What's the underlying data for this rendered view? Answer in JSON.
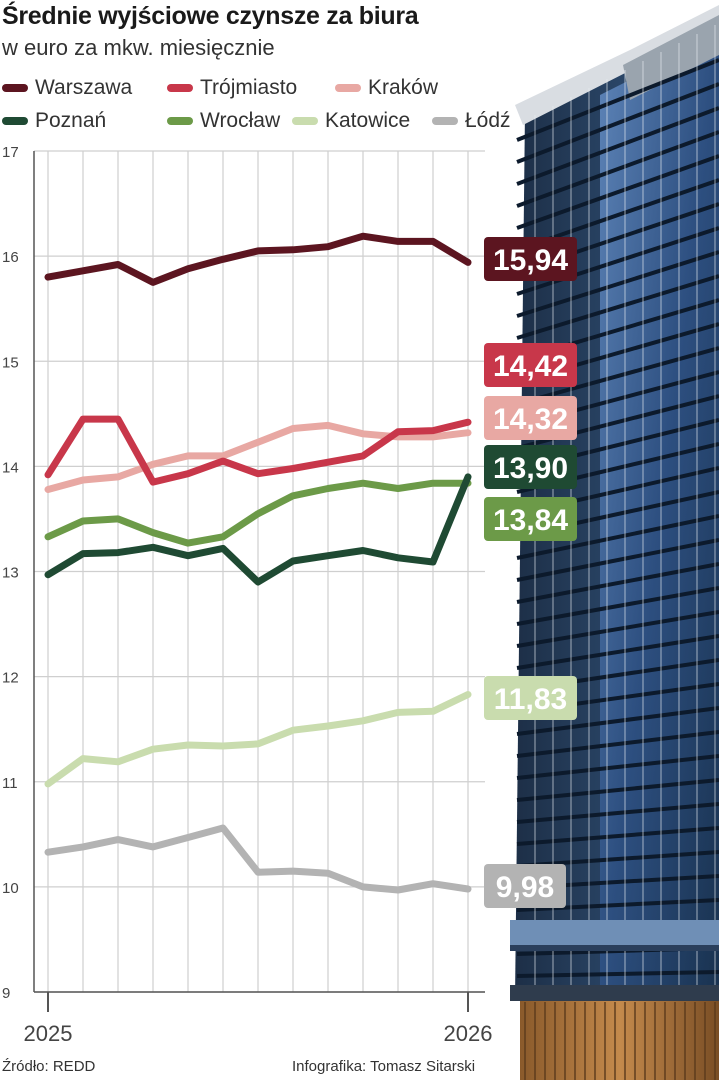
{
  "title": "Średnie wyjściowe czynsze za biura",
  "subtitle": "w euro za mkw. miesięcznie",
  "footer": {
    "source": "Źródło: REDD",
    "credit": "Infografika: Tomasz Sitarski"
  },
  "chart_data": {
    "type": "line",
    "title": "Średnie wyjściowe czynsze za biura",
    "subtitle": "w euro za mkw. miesięcznie",
    "xlabel": "",
    "ylabel": "",
    "ylim": [
      9,
      17
    ],
    "yticks": [
      9,
      10,
      11,
      12,
      13,
      14,
      15,
      16,
      17
    ],
    "x_tick_labels": [
      "2025",
      "2026"
    ],
    "grid": true,
    "legend_position": "top",
    "n_points": 13,
    "series": [
      {
        "name": "Warszawa",
        "color": "#5c1520",
        "end_label": "15,94",
        "values": [
          15.8,
          15.86,
          15.92,
          15.75,
          15.88,
          15.97,
          16.05,
          16.06,
          16.09,
          16.19,
          16.14,
          16.14,
          15.94
        ]
      },
      {
        "name": "Trójmiasto",
        "color": "#c8374a",
        "end_label": "14,42",
        "values": [
          13.92,
          14.45,
          14.45,
          13.85,
          13.93,
          14.05,
          13.93,
          13.98,
          14.04,
          14.1,
          14.33,
          14.34,
          14.42
        ]
      },
      {
        "name": "Kraków",
        "color": "#e8a8a3",
        "end_label": "14,32",
        "values": [
          13.78,
          13.87,
          13.9,
          14.02,
          14.1,
          14.1,
          14.23,
          14.36,
          14.39,
          14.31,
          14.28,
          14.28,
          14.32
        ]
      },
      {
        "name": "Poznań",
        "color": "#1f4a33",
        "end_label": "13,90",
        "values": [
          12.97,
          13.17,
          13.18,
          13.23,
          13.15,
          13.22,
          12.9,
          13.1,
          13.15,
          13.2,
          13.13,
          13.09,
          13.9
        ]
      },
      {
        "name": "Wrocław",
        "color": "#6c9a48",
        "end_label": "13,84",
        "values": [
          13.33,
          13.48,
          13.5,
          13.37,
          13.27,
          13.33,
          13.55,
          13.72,
          13.79,
          13.84,
          13.79,
          13.84,
          13.84
        ]
      },
      {
        "name": "Katowice",
        "color": "#c9dcae",
        "end_label": "11,83",
        "values": [
          10.98,
          11.22,
          11.19,
          11.31,
          11.35,
          11.34,
          11.36,
          11.49,
          11.53,
          11.58,
          11.66,
          11.67,
          11.83
        ]
      },
      {
        "name": "Łódź",
        "color": "#b3b3b3",
        "end_label": "9,98",
        "values": [
          10.33,
          10.38,
          10.45,
          10.38,
          10.47,
          10.56,
          10.14,
          10.15,
          10.13,
          10.0,
          9.97,
          10.03,
          9.98
        ]
      }
    ]
  }
}
